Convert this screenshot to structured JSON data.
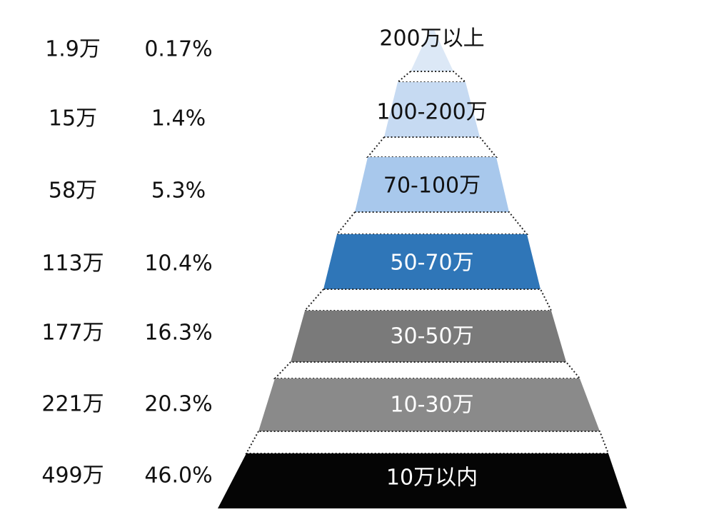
{
  "tiers": [
    {
      "label": "200万以上",
      "count": "1.9万",
      "percent": "0.17%"
    },
    {
      "label": "100-200万",
      "count": "15万",
      "percent": "1.4%"
    },
    {
      "label": "70-100万",
      "count": "58万",
      "percent": "5.3%"
    },
    {
      "label": "50-70万",
      "count": "113万",
      "percent": "10.4%"
    },
    {
      "label": "30-50万",
      "count": "177万",
      "percent": "16.3%"
    },
    {
      "label": "10-30万",
      "count": "221万",
      "percent": "20.3%"
    },
    {
      "label": "10万以内",
      "count": "499万",
      "percent": "46.0%"
    }
  ]
}
